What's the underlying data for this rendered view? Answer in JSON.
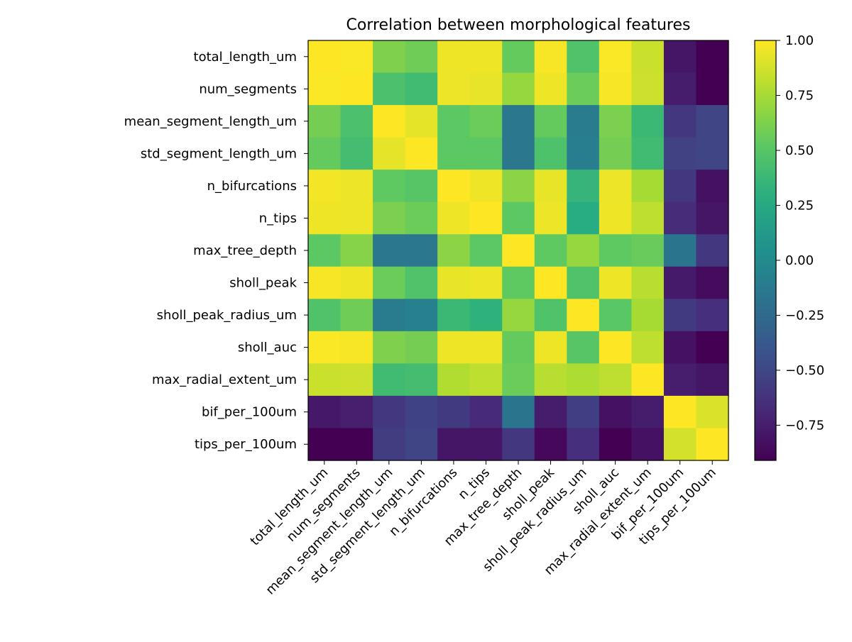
{
  "chart_data": {
    "type": "heatmap",
    "title": "Correlation between morphological features",
    "xlabel": "",
    "ylabel": "",
    "features": [
      "total_length_um",
      "num_segments",
      "mean_segment_length_um",
      "std_segment_length_um",
      "n_bifurcations",
      "n_tips",
      "max_tree_depth",
      "sholl_peak",
      "sholl_peak_radius_um",
      "sholl_auc",
      "max_radial_extent_um",
      "bif_per_100um",
      "tips_per_100um"
    ],
    "matrix": [
      [
        1.0,
        0.99,
        0.63,
        0.58,
        0.96,
        0.96,
        0.55,
        0.98,
        0.47,
        0.99,
        0.85,
        -0.8,
        -0.92
      ],
      [
        0.99,
        1.0,
        0.45,
        0.4,
        0.95,
        0.94,
        0.7,
        0.96,
        0.57,
        0.98,
        0.86,
        -0.76,
        -0.92
      ],
      [
        0.6,
        0.45,
        1.0,
        0.93,
        0.52,
        0.57,
        -0.15,
        0.55,
        -0.12,
        0.62,
        0.38,
        -0.6,
        -0.51
      ],
      [
        0.55,
        0.42,
        0.93,
        1.0,
        0.52,
        0.52,
        -0.15,
        0.46,
        -0.1,
        0.6,
        0.4,
        -0.53,
        -0.51
      ],
      [
        0.97,
        0.95,
        0.53,
        0.5,
        1.0,
        0.96,
        0.67,
        0.94,
        0.35,
        0.95,
        0.75,
        -0.6,
        -0.82
      ],
      [
        0.96,
        0.95,
        0.62,
        0.57,
        0.96,
        1.0,
        0.52,
        0.95,
        0.28,
        0.96,
        0.82,
        -0.67,
        -0.8
      ],
      [
        0.52,
        0.65,
        -0.15,
        -0.15,
        0.67,
        0.52,
        1.0,
        0.53,
        0.7,
        0.53,
        0.56,
        -0.17,
        -0.6
      ],
      [
        0.98,
        0.96,
        0.57,
        0.47,
        0.94,
        0.95,
        0.53,
        1.0,
        0.47,
        0.96,
        0.8,
        -0.77,
        -0.85
      ],
      [
        0.47,
        0.58,
        -0.12,
        -0.08,
        0.38,
        0.32,
        0.7,
        0.47,
        1.0,
        0.51,
        0.75,
        -0.58,
        -0.65
      ],
      [
        0.99,
        0.98,
        0.63,
        0.6,
        0.96,
        0.96,
        0.55,
        0.96,
        0.5,
        1.0,
        0.82,
        -0.82,
        -0.92
      ],
      [
        0.85,
        0.86,
        0.4,
        0.42,
        0.78,
        0.82,
        0.57,
        0.8,
        0.77,
        0.82,
        1.0,
        -0.75,
        -0.8
      ],
      [
        -0.78,
        -0.74,
        -0.6,
        -0.52,
        -0.58,
        -0.68,
        -0.17,
        -0.76,
        -0.55,
        -0.82,
        -0.76,
        1.0,
        0.9
      ],
      [
        -0.92,
        -0.92,
        -0.57,
        -0.51,
        -0.8,
        -0.8,
        -0.6,
        -0.87,
        -0.65,
        -0.92,
        -0.82,
        0.88,
        1.0
      ]
    ],
    "colormap": "viridis",
    "vmin": -0.91,
    "vmax": 1.0,
    "colorbar_ticks": [
      -0.75,
      -0.5,
      -0.25,
      0.0,
      0.25,
      0.5,
      0.75,
      1.0
    ],
    "colorbar_tick_labels": [
      "−0.75",
      "−0.50",
      "−0.25",
      "0.00",
      "0.25",
      "0.50",
      "0.75",
      "1.00"
    ],
    "grid": false
  }
}
